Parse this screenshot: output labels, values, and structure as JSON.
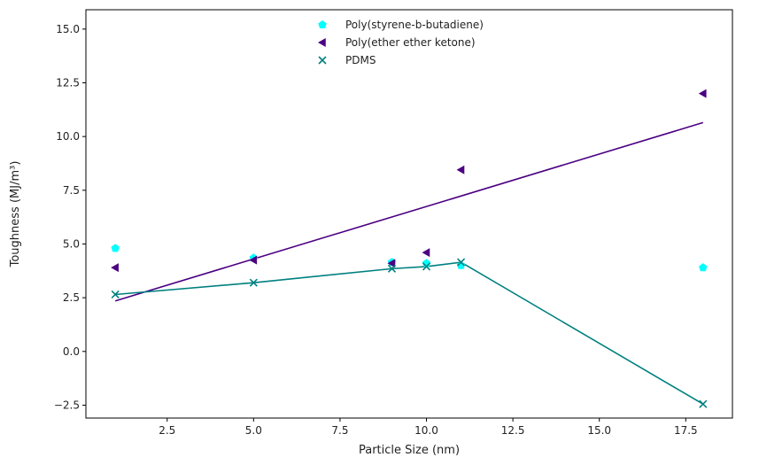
{
  "chart_data": {
    "type": "scatter",
    "title": "",
    "xlabel": "Particle Size (nm)",
    "ylabel": "Toughness (MJ/m³)",
    "xlim": [
      0.15,
      18.85
    ],
    "ylim": [
      -3.1,
      15.9
    ],
    "xticks": [
      2.5,
      5.0,
      7.5,
      10.0,
      12.5,
      15.0,
      17.5
    ],
    "yticks": [
      -2.5,
      0.0,
      2.5,
      5.0,
      7.5,
      10.0,
      12.5,
      15.0
    ],
    "xtick_labels": [
      "2.5",
      "5.0",
      "7.5",
      "10.0",
      "12.5",
      "15.0",
      "17.5"
    ],
    "ytick_labels": [
      "−2.5",
      "0.0",
      "2.5",
      "5.0",
      "7.5",
      "10.0",
      "12.5",
      "15.0"
    ],
    "grid": false,
    "legend_position": "top-center",
    "series": [
      {
        "name": "Poly(styrene-b-butadiene)",
        "marker": "pentagon",
        "color": "#00ffff",
        "points": [
          [
            1,
            4.8
          ],
          [
            5,
            4.35
          ],
          [
            9,
            4.15
          ],
          [
            10,
            4.1
          ],
          [
            11,
            4.0
          ],
          [
            18,
            3.9
          ]
        ]
      },
      {
        "name": "Poly(ether ether ketone)",
        "marker": "triangle-left",
        "color": "#4b0082",
        "points": [
          [
            1,
            3.9
          ],
          [
            5,
            4.25
          ],
          [
            9,
            4.1
          ],
          [
            10,
            4.6
          ],
          [
            11,
            8.45
          ],
          [
            18,
            12.0
          ]
        ],
        "fit_line": [
          [
            1,
            2.35
          ],
          [
            18,
            10.65
          ]
        ]
      },
      {
        "name": "PDMS",
        "marker": "x",
        "color": "#008080",
        "points": [
          [
            1,
            2.65
          ],
          [
            5,
            3.2
          ],
          [
            9,
            3.85
          ],
          [
            10,
            3.95
          ],
          [
            11,
            4.15
          ],
          [
            18,
            -2.45
          ]
        ],
        "connect": true
      }
    ]
  }
}
